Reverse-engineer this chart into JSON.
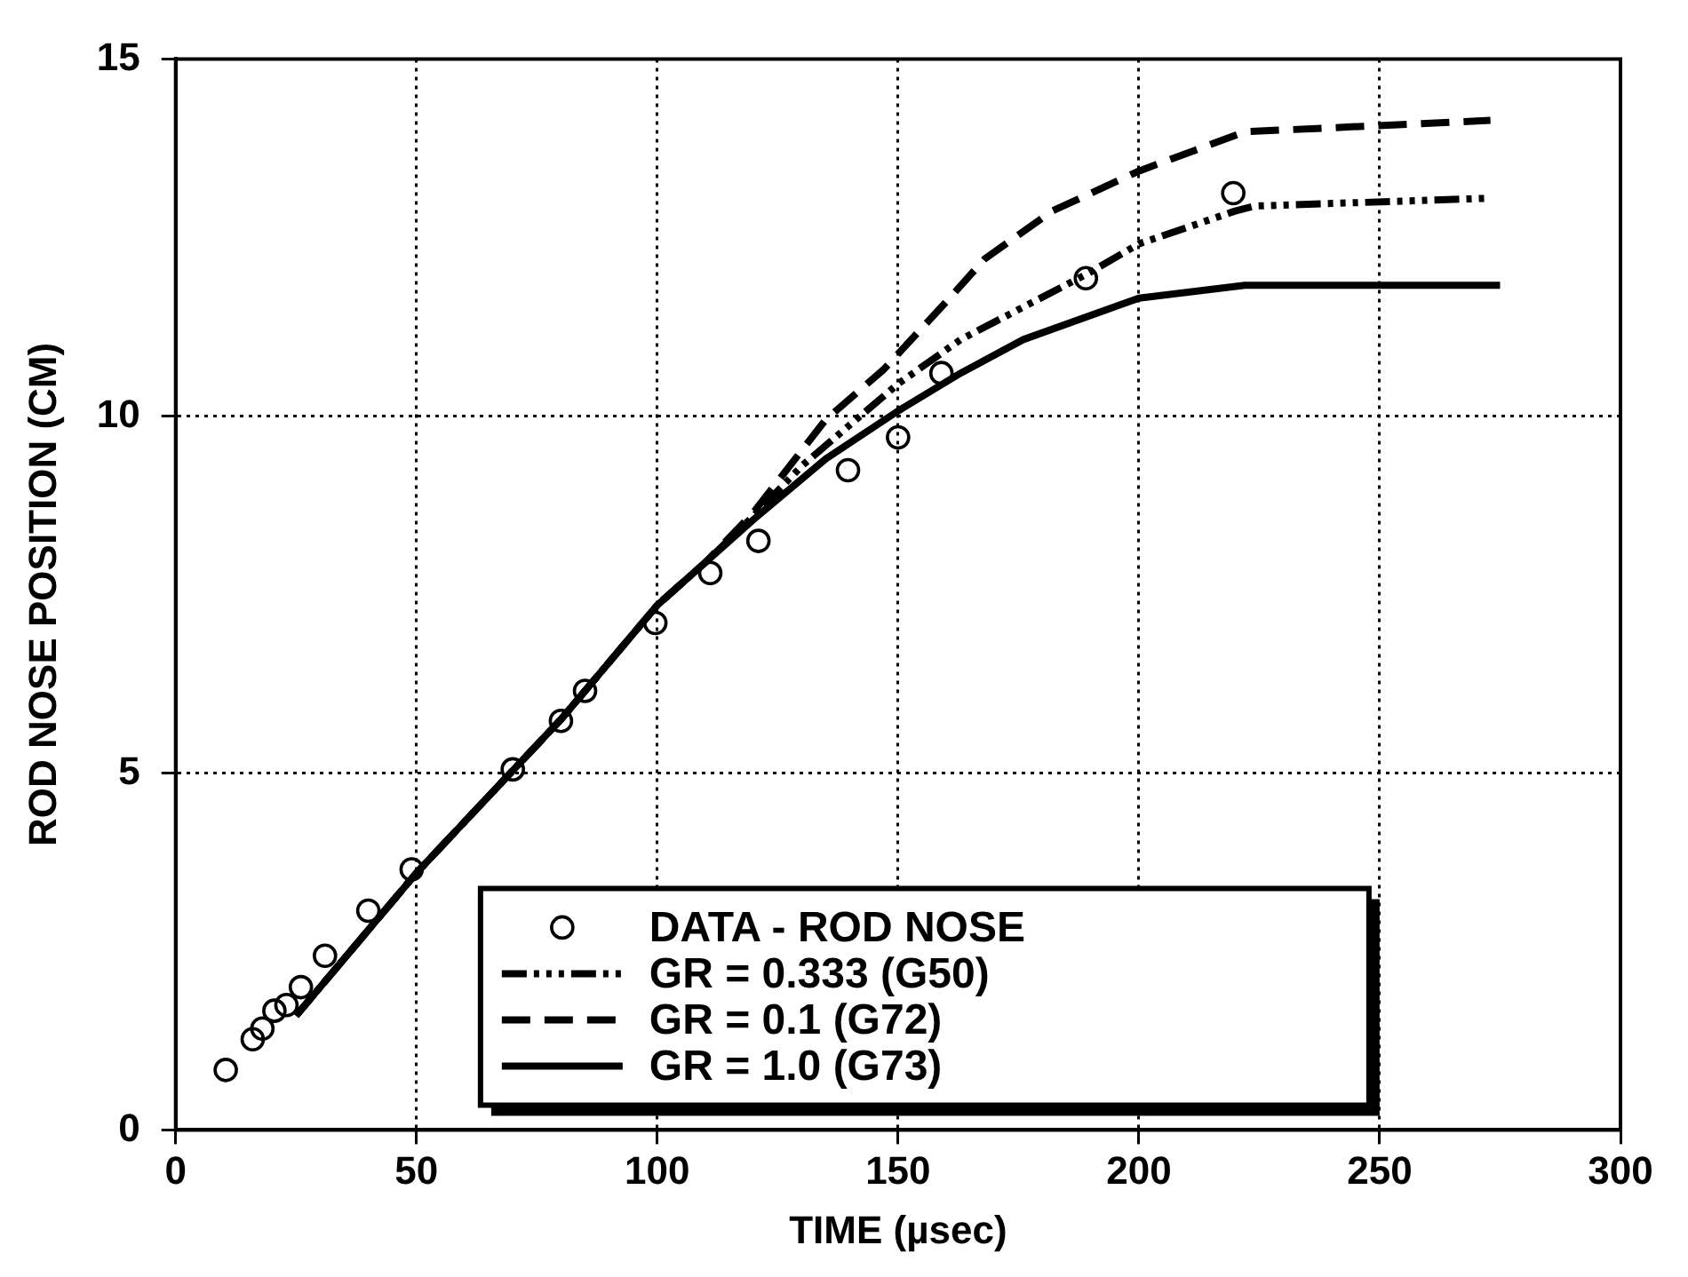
{
  "chart_data": {
    "type": "line",
    "xlabel": "TIME (µsec)",
    "ylabel": "ROD NOSE POSITION (CM)",
    "xlim": [
      0,
      300
    ],
    "xticks": [
      0,
      50,
      100,
      150,
      200,
      250,
      300
    ],
    "ylim": [
      0,
      15
    ],
    "yticks": [
      0,
      5,
      10,
      15
    ],
    "grid": true,
    "legend": "bottom",
    "series": [
      {
        "name": "DATA - ROD NOSE",
        "type": "scatter",
        "marker": "circle",
        "color": "#000000",
        "x": [
          10.4,
          16,
          18,
          20.5,
          23,
          26,
          31,
          40,
          49,
          70,
          80,
          85,
          99.6,
          111,
          121,
          139.6,
          150,
          159,
          189,
          219.6
        ],
        "values": [
          0.84,
          1.27,
          1.42,
          1.67,
          1.75,
          2.0,
          2.44,
          3.07,
          3.65,
          5.05,
          5.73,
          6.15,
          7.1,
          7.8,
          8.25,
          9.24,
          9.7,
          10.6,
          11.93,
          13.12
        ]
      },
      {
        "name": "GR = 0.333 (G50)",
        "type": "line",
        "line_style": "dashdot",
        "marker": "none",
        "color": "#000000",
        "x": [
          25,
          50,
          80,
          100,
          110,
          120,
          130,
          150,
          163,
          189,
          200,
          220,
          224,
          273
        ],
        "values": [
          1.6,
          3.6,
          5.75,
          7.35,
          7.95,
          8.6,
          9.3,
          10.45,
          11.07,
          11.98,
          12.41,
          12.87,
          12.94,
          13.05
        ]
      },
      {
        "name": "GR = 0.1 (G72)",
        "type": "line",
        "line_style": "dashed",
        "marker": "none",
        "color": "#000000",
        "x": [
          25,
          50,
          80,
          100,
          110,
          120,
          135,
          147,
          160,
          168,
          182,
          200,
          222,
          273
        ],
        "values": [
          1.6,
          3.6,
          5.75,
          7.35,
          7.95,
          8.65,
          9.95,
          10.65,
          11.6,
          12.2,
          12.87,
          13.43,
          13.98,
          14.14
        ]
      },
      {
        "name": "GR = 1.0 (G73)",
        "type": "line",
        "line_style": "solid",
        "marker": "none",
        "color": "#000000",
        "x": [
          25,
          50,
          80,
          100,
          110,
          120,
          135,
          150,
          163,
          176,
          200,
          222,
          275
        ],
        "values": [
          1.6,
          3.6,
          5.75,
          7.35,
          7.95,
          8.55,
          9.4,
          10.07,
          10.6,
          11.07,
          11.65,
          11.83,
          11.83
        ]
      }
    ]
  }
}
